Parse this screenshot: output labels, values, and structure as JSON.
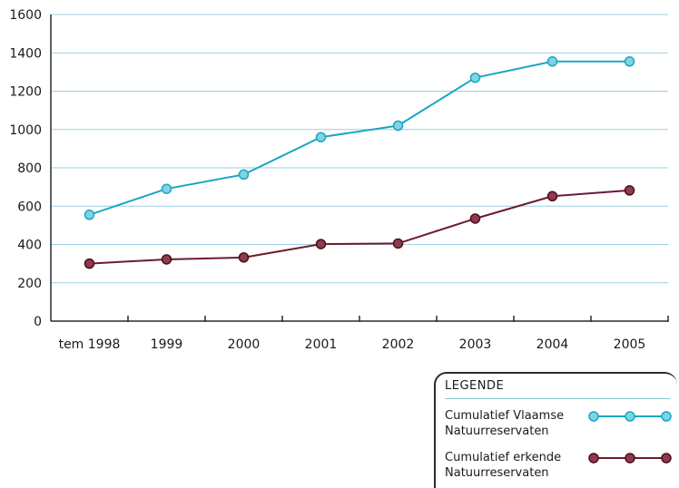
{
  "chart_data": {
    "type": "line",
    "categories": [
      "tem 1998",
      "1999",
      "2000",
      "2001",
      "2002",
      "2003",
      "2004",
      "2005"
    ],
    "series": [
      {
        "name": "Cumulatief Vlaamse Natuurreservaten",
        "color": "#1aa6c4",
        "marker_fill": "#7fd3e3",
        "values": [
          555,
          690,
          765,
          960,
          1020,
          1270,
          1355,
          1355
        ]
      },
      {
        "name": "Cumulatief erkende Natuurreservaten",
        "color": "#6b1a30",
        "marker_fill": "#8e3b4c",
        "values": [
          300,
          322,
          332,
          402,
          405,
          535,
          652,
          682
        ]
      }
    ],
    "yticks": [
      0,
      200,
      400,
      600,
      800,
      1000,
      1200,
      1400,
      1600
    ],
    "ylim": [
      0,
      1600
    ],
    "grid": true,
    "gridline_color": "#9ccfe0",
    "legend_position": "bottom-right",
    "xlabel": "",
    "ylabel": "",
    "title": ""
  },
  "legend": {
    "title": "LEGENDE",
    "items": [
      {
        "line1": "Cumulatief Vlaamse",
        "line2": "Natuurreservaten"
      },
      {
        "line1": "Cumulatief erkende",
        "line2": "Natuurreservaten"
      }
    ]
  }
}
